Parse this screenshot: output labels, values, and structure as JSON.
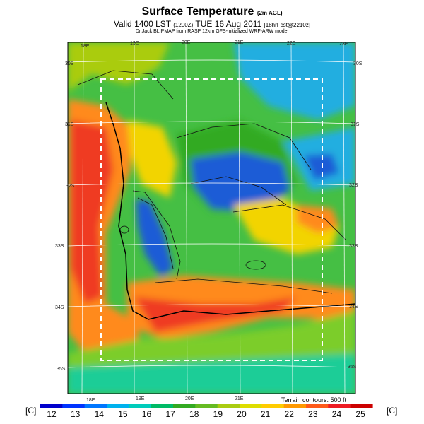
{
  "header": {
    "title": "Surface Temperature",
    "title_sub": "(2m AGL)",
    "valid_prefix": "Valid 1400 LST",
    "valid_paren": "(1200Z)",
    "valid_date": "TUE 16 Aug 2011",
    "valid_fcst": "[18hrFcst@2210z]",
    "credit": "Dr.Jack BLIPMAP from RASP 12km GFS-initialized WRF-ARW model"
  },
  "map": {
    "top_lon_labels": [
      "18E",
      "19E",
      "20E",
      "21E",
      "22E",
      "23E"
    ],
    "bottom_lon_labels": [
      "18E",
      "19E",
      "20E",
      "21E"
    ],
    "left_lat_labels": [
      "30S",
      "31S",
      "32S",
      "33S",
      "34S",
      "35S"
    ],
    "right_lat_labels": [
      "30S",
      "31S",
      "32S",
      "33S",
      "34S",
      "35S"
    ],
    "terrain_note": "Terrain contours: 500 ft"
  },
  "colorbar": {
    "unit_left": "[C]",
    "unit_right": "[C]",
    "ticks": [
      "12",
      "13",
      "14",
      "15",
      "16",
      "17",
      "18",
      "19",
      "20",
      "21",
      "22",
      "23",
      "24",
      "25"
    ],
    "colors": [
      "#0000cc",
      "#0033ff",
      "#0077ff",
      "#00b2ee",
      "#00ccbb",
      "#00bb66",
      "#33aa22",
      "#66bb22",
      "#aacc11",
      "#dddd00",
      "#ffcc00",
      "#ff9900",
      "#ff5a1a",
      "#ee1c24",
      "#cc0000"
    ]
  },
  "field_colors": {
    "cold": "#1e5bd6",
    "cool": "#20aee0",
    "mild": "#45bf44",
    "green": "#7ccd2c",
    "warm": "#f2d400",
    "hot": "#ff8a1f",
    "hottest": "#ef3a24"
  }
}
